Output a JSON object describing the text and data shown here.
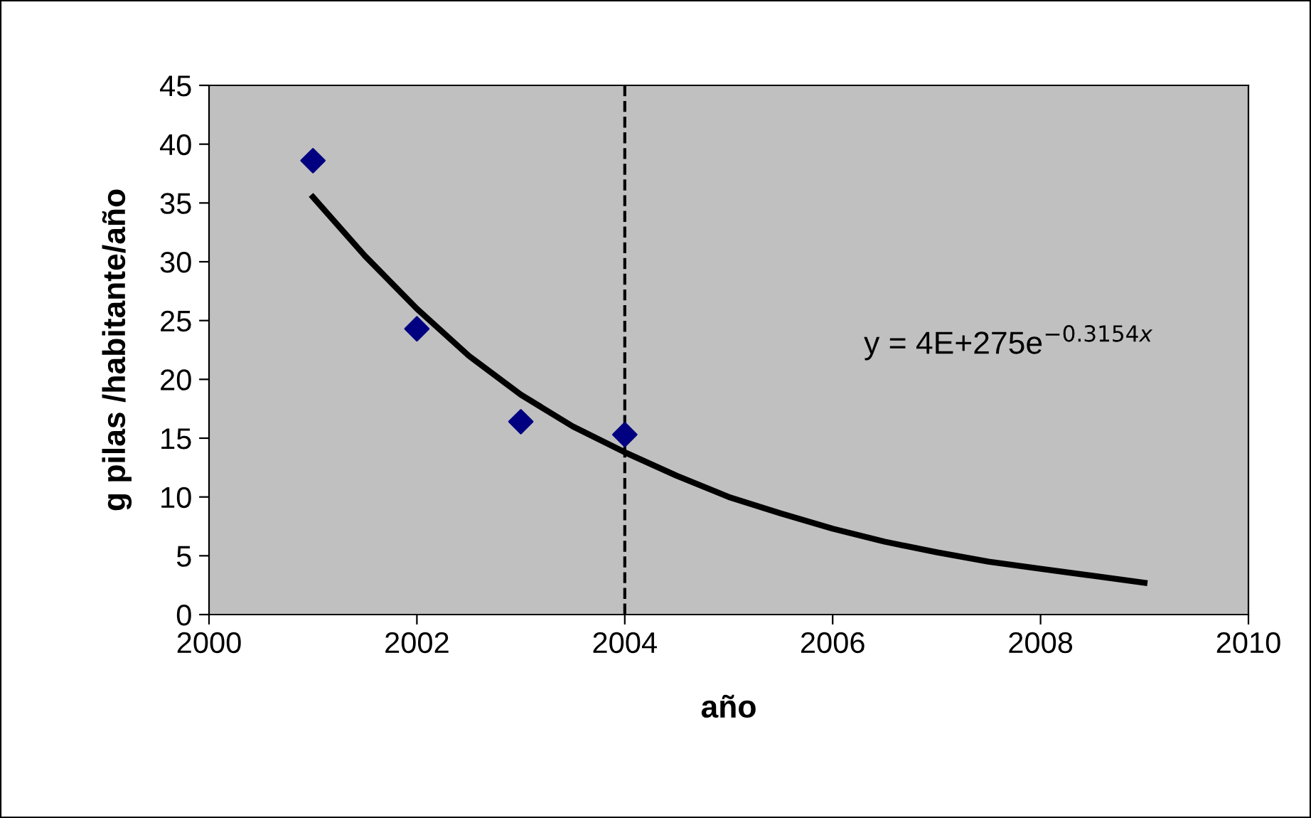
{
  "chart_data": {
    "type": "scatter",
    "xlabel": "año",
    "ylabel": "g pilas /habitante/año",
    "annotations": [
      "y = 4E+275e$^{−0.3154x}$"
    ],
    "xlim": [
      2000,
      2010
    ],
    "xticks": [
      2000,
      2002,
      2004,
      2006,
      2008,
      2010
    ],
    "ylim": [
      0,
      45
    ],
    "yticks": [
      0,
      5,
      10,
      15,
      20,
      25,
      30,
      35,
      40,
      45
    ],
    "grid": false,
    "legend": false,
    "series": [
      {
        "type": "scatter",
        "color": "#000080",
        "marker": "diamond",
        "x": [
          2001,
          2002,
          2003,
          2004
        ],
        "values": [
          38.6,
          24.3,
          16.4,
          15.3
        ]
      },
      {
        "type": "line",
        "color": "#000000",
        "marker": "none",
        "line_style": "solid",
        "x": [
          2001,
          2001.5,
          2002,
          2002.5,
          2003,
          2003.5,
          2004,
          2004.5,
          2005,
          2005.5,
          2006,
          2006.5,
          2007,
          2007.5,
          2008,
          2008.5,
          2009
        ],
        "values": [
          35.5,
          30.5,
          26,
          22,
          18.7,
          16,
          13.8,
          11.8,
          10,
          8.6,
          7.3,
          6.2,
          5.3,
          4.5,
          3.9,
          3.3,
          2.7
        ]
      }
    ],
    "ref_lines": [
      {
        "axis": "x",
        "value": 2004,
        "color": "#000000",
        "line_style": "dashed"
      }
    ]
  }
}
